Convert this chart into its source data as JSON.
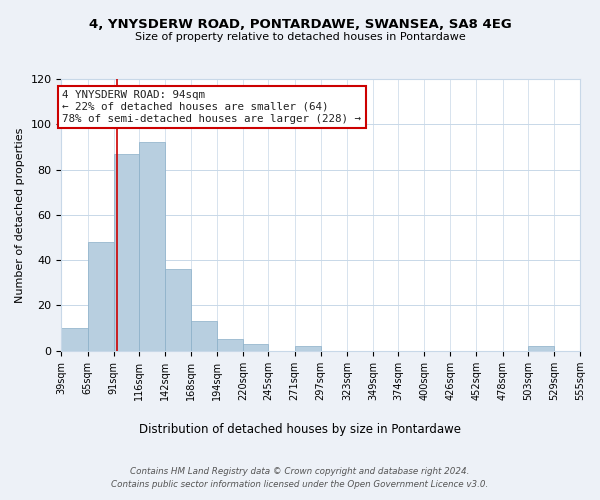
{
  "title": "4, YNYSDERW ROAD, PONTARDAWE, SWANSEA, SA8 4EG",
  "subtitle": "Size of property relative to detached houses in Pontardawe",
  "xlabel": "Distribution of detached houses by size in Pontardawe",
  "ylabel": "Number of detached properties",
  "bar_edges": [
    39,
    65,
    91,
    116,
    142,
    168,
    194,
    220,
    245,
    271,
    297,
    323,
    349,
    374,
    400,
    426,
    452,
    478,
    503,
    529,
    555
  ],
  "bar_heights": [
    10,
    48,
    87,
    92,
    36,
    13,
    5,
    3,
    0,
    2,
    0,
    0,
    0,
    0,
    0,
    0,
    0,
    0,
    2,
    0,
    0
  ],
  "bar_color": "#b8cfe0",
  "bar_edge_color": "#8aafc8",
  "property_line_x": 94,
  "property_line_color": "#cc0000",
  "annotation_text": "4 YNYSDERW ROAD: 94sqm\n← 22% of detached houses are smaller (64)\n78% of semi-detached houses are larger (228) →",
  "annotation_box_color": "#ffffff",
  "annotation_box_edge_color": "#cc0000",
  "ylim": [
    0,
    120
  ],
  "yticks": [
    0,
    20,
    40,
    60,
    80,
    100,
    120
  ],
  "tick_labels": [
    "39sqm",
    "65sqm",
    "91sqm",
    "116sqm",
    "142sqm",
    "168sqm",
    "194sqm",
    "220sqm",
    "245sqm",
    "271sqm",
    "297sqm",
    "323sqm",
    "349sqm",
    "374sqm",
    "400sqm",
    "426sqm",
    "452sqm",
    "478sqm",
    "503sqm",
    "529sqm",
    "555sqm"
  ],
  "footer_line1": "Contains HM Land Registry data © Crown copyright and database right 2024.",
  "footer_line2": "Contains public sector information licensed under the Open Government Licence v3.0.",
  "bg_color": "#edf1f7",
  "plot_bg_color": "#ffffff",
  "grid_color": "#c8d8e8"
}
